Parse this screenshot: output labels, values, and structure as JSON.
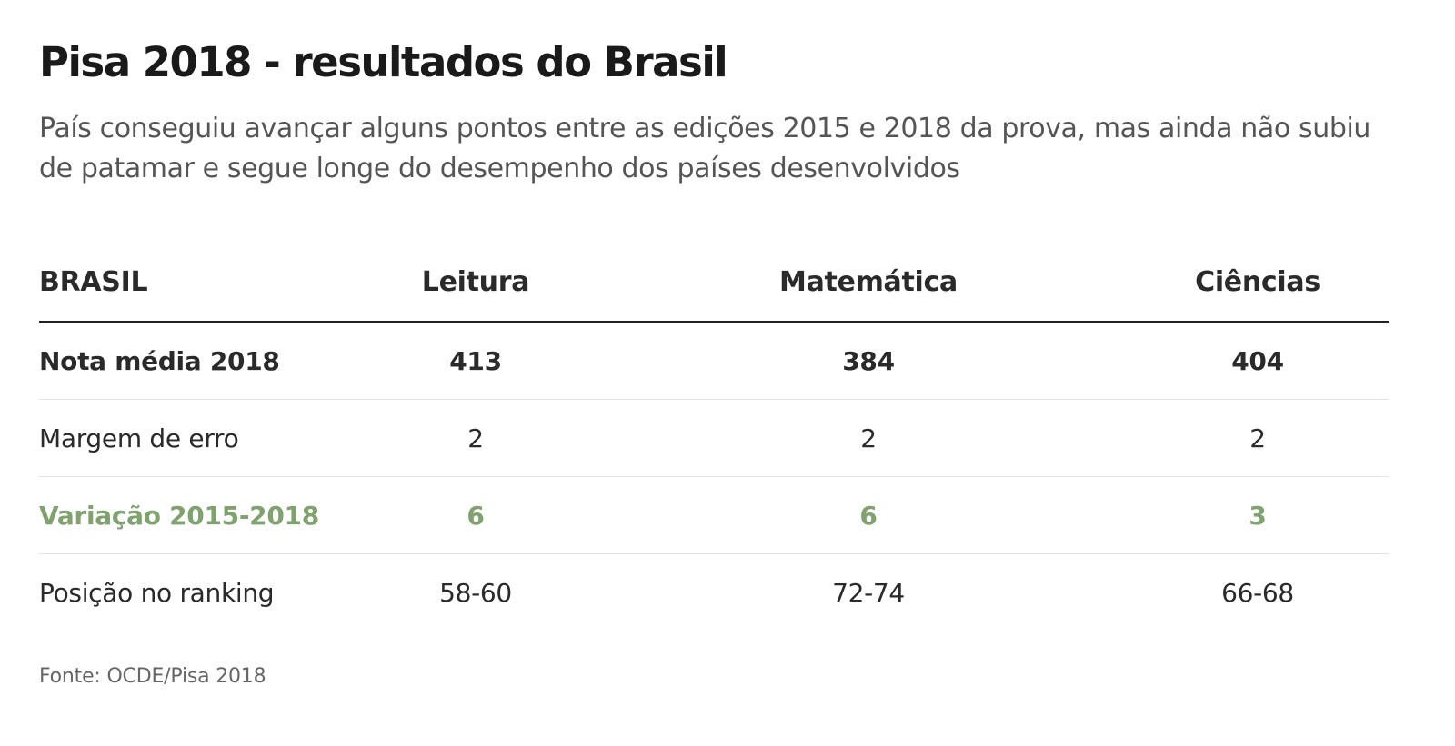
{
  "title": "Pisa 2018 - resultados do Brasil",
  "subtitle": "País conseguiu avançar alguns pontos entre as edições 2015 e 2018 da prova, mas ainda não subiu de patamar e segue longe do desempenho dos países desenvolvidos",
  "table": {
    "header": {
      "label": "BRASIL",
      "columns": [
        "Leitura",
        "Matemática",
        "Ciências"
      ]
    },
    "rows": [
      {
        "label": "Nota média 2018",
        "values": [
          "413",
          "384",
          "404"
        ]
      },
      {
        "label": "Margem de erro",
        "values": [
          "2",
          "2",
          "2"
        ]
      },
      {
        "label": "Variação 2015-2018",
        "values": [
          "6",
          "6",
          "3"
        ]
      },
      {
        "label": "Posição no ranking",
        "values": [
          "58-60",
          "72-74",
          "66-68"
        ]
      }
    ]
  },
  "colors": {
    "highlight": "#7fa26f",
    "text": "#2a2a2a",
    "subtitle": "#555555"
  },
  "source": "Fonte: OCDE/Pisa 2018"
}
